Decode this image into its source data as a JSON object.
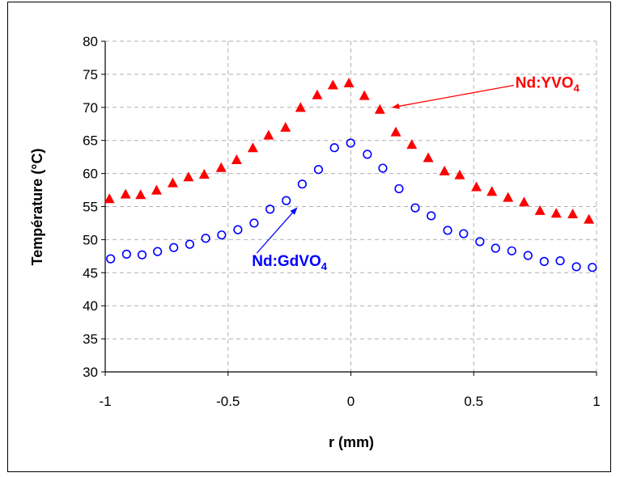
{
  "chart_data": {
    "type": "scatter",
    "title": "",
    "xlabel": "r (mm)",
    "ylabel": "Température (°C)",
    "xlim": [
      -1,
      1
    ],
    "ylim": [
      30,
      80
    ],
    "x_ticks": [
      "-1",
      "-0.5",
      "0",
      "0.5",
      "1"
    ],
    "x_tick_values": [
      -1,
      -0.5,
      0,
      0.5,
      1
    ],
    "y_ticks": [
      "30",
      "35",
      "40",
      "45",
      "50",
      "55",
      "60",
      "65",
      "70",
      "75",
      "80"
    ],
    "y_tick_values": [
      30,
      35,
      40,
      45,
      50,
      55,
      60,
      65,
      70,
      75,
      80
    ],
    "grid": true,
    "series": [
      {
        "label_main": "Nd:YVO",
        "label_sub": "4",
        "color": "#ff0000",
        "marker": "triangle",
        "x": [
          -0.983,
          -0.917,
          -0.856,
          -0.791,
          -0.725,
          -0.661,
          -0.597,
          -0.528,
          -0.465,
          -0.399,
          -0.335,
          -0.266,
          -0.205,
          -0.137,
          -0.073,
          -0.008,
          0.055,
          0.118,
          0.183,
          0.248,
          0.315,
          0.381,
          0.443,
          0.511,
          0.574,
          0.64,
          0.705,
          0.77,
          0.836,
          0.903,
          0.969
        ],
        "y": [
          56.2,
          56.9,
          56.8,
          57.5,
          58.6,
          59.5,
          59.9,
          60.9,
          62.1,
          63.9,
          65.8,
          67.0,
          70.0,
          71.9,
          73.4,
          73.7,
          71.8,
          69.7,
          66.3,
          64.4,
          62.4,
          60.4,
          59.8,
          58.0,
          57.3,
          56.4,
          55.7,
          54.4,
          54.0,
          53.9,
          53.1
        ]
      },
      {
        "label_main": "Nd:GdVO",
        "label_sub": "4",
        "color": "#0000ff",
        "marker": "circle-open",
        "x": [
          -0.978,
          -0.913,
          -0.85,
          -0.787,
          -0.721,
          -0.656,
          -0.591,
          -0.526,
          -0.46,
          -0.394,
          -0.329,
          -0.263,
          -0.198,
          -0.132,
          -0.067,
          -0.001,
          0.067,
          0.13,
          0.196,
          0.262,
          0.327,
          0.394,
          0.459,
          0.525,
          0.589,
          0.655,
          0.721,
          0.787,
          0.852,
          0.918,
          0.983
        ],
        "y": [
          47.1,
          47.8,
          47.7,
          48.2,
          48.8,
          49.3,
          50.2,
          50.7,
          51.5,
          52.5,
          54.6,
          55.9,
          58.4,
          60.6,
          63.9,
          64.6,
          62.9,
          60.8,
          57.7,
          54.8,
          53.6,
          51.4,
          50.9,
          49.7,
          48.7,
          48.3,
          47.6,
          46.7,
          46.8,
          45.9,
          45.8
        ]
      }
    ],
    "annotations": [
      {
        "series": 0,
        "text_x": 0.8,
        "text_y": 73.0,
        "arrow_to_x": 0.17,
        "arrow_to_y": 70.0
      },
      {
        "series": 1,
        "text_x": -0.25,
        "text_y": 46.0,
        "arrow_to_x": -0.22,
        "arrow_to_y": 54.8
      }
    ]
  }
}
